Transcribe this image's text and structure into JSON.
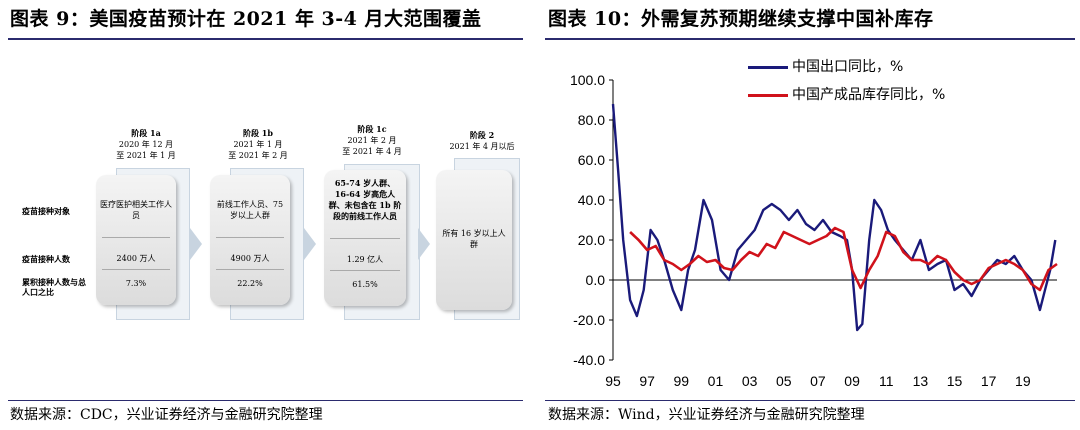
{
  "left": {
    "title": "图表 9：美国疫苗预计在 2021 年 3-4 月大范围覆盖",
    "source": "数据来源：CDC，兴业证券经济与金融研究院整理",
    "row_labels": [
      "疫苗接种对象",
      "疫苗接种人数",
      "累积接种人数与总人口之比"
    ],
    "phases": [
      {
        "name": "阶段 1a",
        "time1": "2020 年 12 月",
        "time2": "至 2021 年 1 月",
        "target": "医疗医护相关工作人员",
        "count": "2400 万人",
        "ratio": "7.3%"
      },
      {
        "name": "阶段 1b",
        "time1": "2021 年 1 月",
        "time2": "至 2021 年 2 月",
        "target": "前线工作人员、75 岁以上人群",
        "count": "4900 万人",
        "ratio": "22.2%"
      },
      {
        "name": "阶段 1c",
        "time1": "2021 年 2 月",
        "time2": "至 2021 年 4 月",
        "target": "65-74 岁人群、16-64 岁高危人群、未包含在 1b 阶段的前线工作人员",
        "count": "1.29 亿人",
        "ratio": "61.5%"
      },
      {
        "name": "阶段 2",
        "time1": "2021 年 4 月以后",
        "time2": "",
        "target": "所有 16 岁以上人群",
        "count": "",
        "ratio": ""
      }
    ]
  },
  "right": {
    "title": "图表 10：外需复苏预期继续支撑中国补库存",
    "source": "数据来源：Wind，兴业证券经济与金融研究院整理"
  },
  "colors": {
    "export": "#1a1a7a",
    "inventory": "#d0121b",
    "accent": "#2b2b6e"
  },
  "chart_data": {
    "type": "line",
    "xlabel": "",
    "ylabel": "",
    "x_ticks": [
      "95",
      "97",
      "99",
      "01",
      "03",
      "05",
      "07",
      "09",
      "11",
      "13",
      "15",
      "17",
      "19"
    ],
    "y_ticks": [
      "100.0",
      "80.0",
      "60.0",
      "40.0",
      "20.0",
      "0.0",
      "-20.0",
      "-40.0"
    ],
    "ylim": [
      -40,
      100
    ],
    "xlim": [
      1995,
      2021
    ],
    "series": [
      {
        "name": "中国出口同比，%",
        "x": [
          1995.0,
          1995.3,
          1995.6,
          1996.0,
          1996.4,
          1996.8,
          1997.2,
          1997.6,
          1998.0,
          1998.5,
          1999.0,
          1999.4,
          1999.8,
          2000.3,
          2000.8,
          2001.3,
          2001.8,
          2002.3,
          2002.8,
          2003.3,
          2003.8,
          2004.3,
          2004.8,
          2005.3,
          2005.8,
          2006.3,
          2006.8,
          2007.3,
          2007.8,
          2008.3,
          2008.7,
          2009.0,
          2009.3,
          2009.6,
          2010.0,
          2010.3,
          2010.7,
          2011.1,
          2011.5,
          2012.0,
          2012.5,
          2013.0,
          2013.5,
          2014.0,
          2014.5,
          2015.0,
          2015.5,
          2016.0,
          2016.5,
          2017.0,
          2017.5,
          2018.0,
          2018.5,
          2019.0,
          2019.5,
          2020.0,
          2020.3,
          2020.6,
          2020.9
        ],
        "values": [
          88,
          55,
          20,
          -10,
          -18,
          -5,
          25,
          20,
          10,
          -5,
          -15,
          5,
          15,
          40,
          30,
          5,
          0,
          15,
          20,
          25,
          35,
          38,
          35,
          30,
          35,
          28,
          25,
          30,
          24,
          22,
          20,
          5,
          -25,
          -22,
          20,
          40,
          35,
          25,
          20,
          15,
          10,
          20,
          5,
          8,
          10,
          -5,
          -2,
          -8,
          0,
          5,
          10,
          8,
          12,
          5,
          0,
          -15,
          -5,
          5,
          20
        ]
      },
      {
        "name": "中国产成品库存同比，%",
        "x": [
          1996.0,
          1996.5,
          1997.0,
          1997.5,
          1998.0,
          1998.5,
          1999.0,
          1999.5,
          2000.0,
          2000.5,
          2001.0,
          2001.5,
          2002.0,
          2002.5,
          2003.0,
          2003.5,
          2004.0,
          2004.5,
          2005.0,
          2005.5,
          2006.0,
          2006.5,
          2007.0,
          2007.5,
          2008.0,
          2008.5,
          2009.0,
          2009.5,
          2010.0,
          2010.5,
          2011.0,
          2011.5,
          2012.0,
          2012.5,
          2013.0,
          2013.5,
          2014.0,
          2014.5,
          2015.0,
          2015.5,
          2016.0,
          2016.5,
          2017.0,
          2017.5,
          2018.0,
          2018.5,
          2019.0,
          2019.5,
          2020.0,
          2020.5,
          2021.0
        ],
        "values": [
          24,
          20,
          15,
          17,
          10,
          8,
          5,
          8,
          12,
          9,
          10,
          6,
          5,
          10,
          14,
          12,
          18,
          16,
          24,
          22,
          20,
          18,
          20,
          22,
          26,
          24,
          5,
          -4,
          5,
          12,
          24,
          22,
          14,
          10,
          10,
          8,
          12,
          10,
          4,
          0,
          -2,
          0,
          6,
          8,
          10,
          8,
          5,
          -2,
          -5,
          5,
          8
        ]
      }
    ]
  }
}
